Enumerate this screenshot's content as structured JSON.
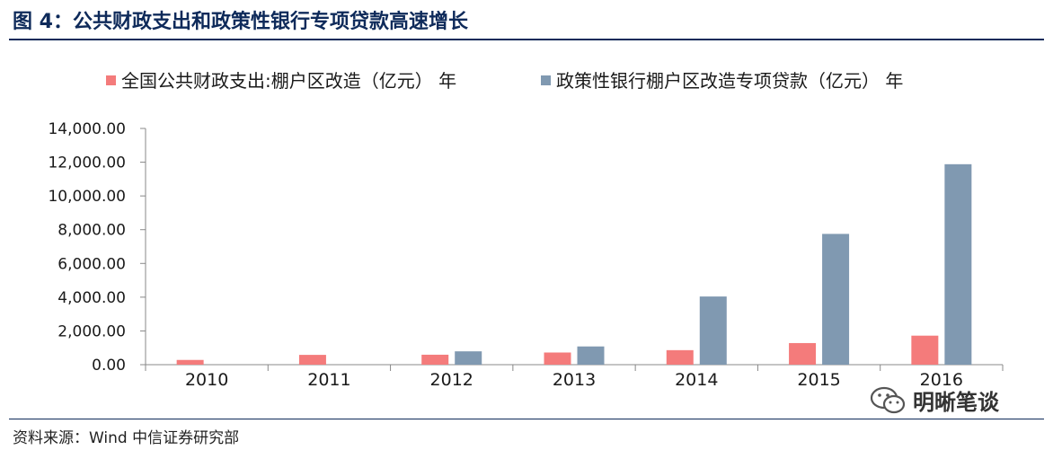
{
  "header": {
    "title": "图 4：公共财政支出和政策性银行专项贷款高速增长"
  },
  "footer": {
    "source": "资料来源：Wind 中信证券研究部"
  },
  "watermark": {
    "text": "明晰笔谈",
    "icon": "wechat-icon"
  },
  "chart_data": {
    "type": "bar",
    "categories": [
      "2010",
      "2011",
      "2012",
      "2013",
      "2014",
      "2015",
      "2016"
    ],
    "series": [
      {
        "name": "全国公共财政支出:棚户区改造（亿元） 年",
        "color": "#f47b7b",
        "values": [
          280,
          580,
          590,
          720,
          860,
          1280,
          1720
        ]
      },
      {
        "name": "政策性银行棚户区改造专项贷款（亿元） 年",
        "color": "#8099b1",
        "values": [
          null,
          null,
          790,
          1080,
          4040,
          7750,
          11880
        ]
      }
    ],
    "ylim": [
      0,
      14000
    ],
    "yticks": [
      "0.00",
      "2,000.00",
      "4,000.00",
      "6,000.00",
      "8,000.00",
      "10,000.00",
      "12,000.00",
      "14,000.00"
    ],
    "legend_position": "top",
    "grid": false
  }
}
